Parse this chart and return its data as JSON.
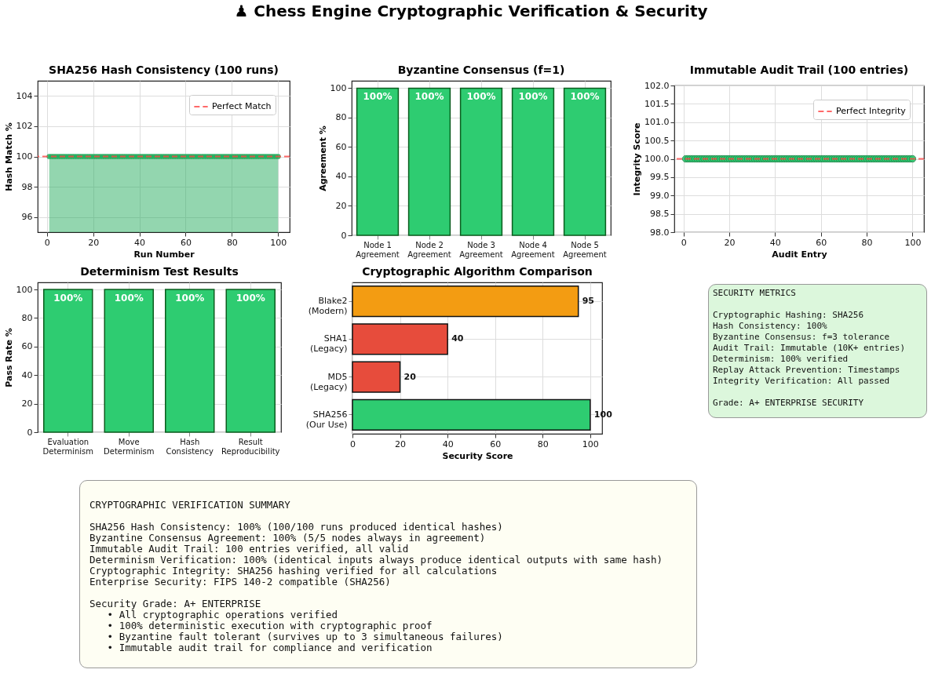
{
  "chart_data": [
    {
      "type": "other",
      "title": "♟ Chess Engine Cryptographic Verification & Security"
    },
    {
      "type": "area",
      "title": "SHA256 Hash Consistency (100 runs)",
      "xlabel": "Run Number",
      "ylabel": "Hash Match %",
      "color": "#27ae60",
      "marker": "circle",
      "grid": true,
      "legend": "top right",
      "x": [
        1,
        2,
        3,
        4,
        5,
        6,
        7,
        8,
        9,
        10,
        11,
        12,
        13,
        14,
        15,
        16,
        17,
        18,
        19,
        20,
        21,
        22,
        23,
        24,
        25,
        26,
        27,
        28,
        29,
        30,
        31,
        32,
        33,
        34,
        35,
        36,
        37,
        38,
        39,
        40,
        41,
        42,
        43,
        44,
        45,
        46,
        47,
        48,
        49,
        50,
        51,
        52,
        53,
        54,
        55,
        56,
        57,
        58,
        59,
        60,
        61,
        62,
        63,
        64,
        65,
        66,
        67,
        68,
        69,
        70,
        71,
        72,
        73,
        74,
        75,
        76,
        77,
        78,
        79,
        80,
        81,
        82,
        83,
        84,
        85,
        86,
        87,
        88,
        89,
        90,
        91,
        92,
        93,
        94,
        95,
        96,
        97,
        98,
        99,
        100
      ],
      "values": [
        100,
        100,
        100,
        100,
        100,
        100,
        100,
        100,
        100,
        100,
        100,
        100,
        100,
        100,
        100,
        100,
        100,
        100,
        100,
        100,
        100,
        100,
        100,
        100,
        100,
        100,
        100,
        100,
        100,
        100,
        100,
        100,
        100,
        100,
        100,
        100,
        100,
        100,
        100,
        100,
        100,
        100,
        100,
        100,
        100,
        100,
        100,
        100,
        100,
        100,
        100,
        100,
        100,
        100,
        100,
        100,
        100,
        100,
        100,
        100,
        100,
        100,
        100,
        100,
        100,
        100,
        100,
        100,
        100,
        100,
        100,
        100,
        100,
        100,
        100,
        100,
        100,
        100,
        100,
        100,
        100,
        100,
        100,
        100,
        100,
        100,
        100,
        100,
        100,
        100,
        100,
        100,
        100,
        100,
        100,
        100,
        100,
        100,
        100,
        100
      ],
      "xlim": [
        -4,
        105
      ],
      "xticks": [
        0,
        20,
        40,
        60,
        80,
        100
      ],
      "ylim": [
        95,
        105
      ],
      "yticks": [
        96,
        98,
        100,
        102,
        104
      ],
      "ref_lines": [
        {
          "axis": "y",
          "value": 100,
          "label": "Perfect Match",
          "color": "#ff4444",
          "line_style": "dashed"
        }
      ]
    },
    {
      "type": "bar",
      "title": "Byzantine Consensus (f=1)",
      "ylabel": "Agreement %",
      "color": "#2ecc71",
      "grid": true,
      "categories": [
        "Node 1\nAgreement",
        "Node 2\nAgreement",
        "Node 3\nAgreement",
        "Node 4\nAgreement",
        "Node 5\nAgreement"
      ],
      "values": [
        100,
        100,
        100,
        100,
        100
      ],
      "value_labels": [
        "100%",
        "100%",
        "100%",
        "100%",
        "100%"
      ],
      "ylim": [
        0,
        105
      ],
      "yticks": [
        0,
        20,
        40,
        60,
        80,
        100
      ]
    },
    {
      "type": "scatter",
      "title": "Immutable Audit Trail (100 entries)",
      "xlabel": "Audit Entry",
      "ylabel": "Integrity Score",
      "color": "#2ecc71",
      "marker": "circle",
      "grid": true,
      "legend": "top right",
      "x": [
        1,
        2,
        3,
        4,
        5,
        6,
        7,
        8,
        9,
        10,
        11,
        12,
        13,
        14,
        15,
        16,
        17,
        18,
        19,
        20,
        21,
        22,
        23,
        24,
        25,
        26,
        27,
        28,
        29,
        30,
        31,
        32,
        33,
        34,
        35,
        36,
        37,
        38,
        39,
        40,
        41,
        42,
        43,
        44,
        45,
        46,
        47,
        48,
        49,
        50,
        51,
        52,
        53,
        54,
        55,
        56,
        57,
        58,
        59,
        60,
        61,
        62,
        63,
        64,
        65,
        66,
        67,
        68,
        69,
        70,
        71,
        72,
        73,
        74,
        75,
        76,
        77,
        78,
        79,
        80,
        81,
        82,
        83,
        84,
        85,
        86,
        87,
        88,
        89,
        90,
        91,
        92,
        93,
        94,
        95,
        96,
        97,
        98,
        99,
        100
      ],
      "values": [
        100,
        100,
        100,
        100,
        100,
        100,
        100,
        100,
        100,
        100,
        100,
        100,
        100,
        100,
        100,
        100,
        100,
        100,
        100,
        100,
        100,
        100,
        100,
        100,
        100,
        100,
        100,
        100,
        100,
        100,
        100,
        100,
        100,
        100,
        100,
        100,
        100,
        100,
        100,
        100,
        100,
        100,
        100,
        100,
        100,
        100,
        100,
        100,
        100,
        100,
        100,
        100,
        100,
        100,
        100,
        100,
        100,
        100,
        100,
        100,
        100,
        100,
        100,
        100,
        100,
        100,
        100,
        100,
        100,
        100,
        100,
        100,
        100,
        100,
        100,
        100,
        100,
        100,
        100,
        100,
        100,
        100,
        100,
        100,
        100,
        100,
        100,
        100,
        100,
        100,
        100,
        100,
        100,
        100,
        100,
        100,
        100,
        100,
        100,
        100
      ],
      "xlim": [
        -4,
        105
      ],
      "xticks": [
        0,
        20,
        40,
        60,
        80,
        100
      ],
      "ylim": [
        98,
        102
      ],
      "yticks": [
        {
          "value": 98,
          "label": "98.0"
        },
        {
          "value": 98.5,
          "label": "98.5"
        },
        {
          "value": 99,
          "label": "99.0"
        },
        {
          "value": 99.5,
          "label": "99.5"
        },
        {
          "value": 100,
          "label": "100.0"
        },
        {
          "value": 100.5,
          "label": "100.5"
        },
        {
          "value": 101,
          "label": "101.0"
        },
        {
          "value": 101.5,
          "label": "101.5"
        },
        {
          "value": 102,
          "label": "102.0"
        }
      ],
      "ref_lines": [
        {
          "axis": "y",
          "value": 100,
          "label": "Perfect Integrity",
          "color": "#ff4444",
          "line_style": "dashed"
        }
      ]
    },
    {
      "type": "bar",
      "title": "Determinism Test Results",
      "ylabel": "Pass Rate %",
      "color": "#2ecc71",
      "grid": true,
      "categories": [
        "Evaluation\nDeterminism",
        "Move\nDeterminism",
        "Hash\nConsistency",
        "Result\nReproducibility"
      ],
      "values": [
        100,
        100,
        100,
        100
      ],
      "value_labels": [
        "100%",
        "100%",
        "100%",
        "100%"
      ],
      "ylim": [
        0,
        105
      ],
      "yticks": [
        0,
        20,
        40,
        60,
        80,
        100
      ]
    },
    {
      "type": "bar",
      "orientation": "horizontal",
      "title": "Cryptographic Algorithm Comparison",
      "xlabel": "Security Score",
      "grid": true,
      "data_labels": true,
      "categories": [
        "Blake2\n(Modern)",
        "SHA1\n(Legacy)",
        "MD5\n(Legacy)",
        "SHA256\n(Our Use)"
      ],
      "values": [
        95,
        40,
        20,
        100
      ],
      "colors": [
        "#f39c12",
        "#e74c3c",
        "#e74c3c",
        "#2ecc71"
      ],
      "xlim": [
        0,
        105
      ],
      "xticks": [
        0,
        20,
        40,
        60,
        80,
        100
      ]
    },
    {
      "type": "other",
      "title": "SECURITY METRICS",
      "annotations": [
        "Cryptographic Hashing: SHA256",
        "Hash Consistency: 100%",
        "Byzantine Consensus: f=3 tolerance",
        "Audit Trail: Immutable (10K+ entries)",
        "Determinism: 100% verified",
        "Replay Attack Prevention: Timestamps",
        "Integrity Verification: All passed",
        "Grade: A+ ENTERPRISE SECURITY"
      ]
    },
    {
      "type": "other",
      "title": "CRYPTOGRAPHIC VERIFICATION SUMMARY",
      "annotations": [
        "SHA256 Hash Consistency: 100% (100/100 runs produced identical hashes)",
        "Byzantine Consensus Agreement: 100% (5/5 nodes always in agreement)",
        "Immutable Audit Trail: 100 entries verified, all valid",
        "Determinism Verification: 100% (identical inputs always produce identical outputs with same hash)",
        "Cryptographic Integrity: SHA256 hashing verified for all calculations",
        "Enterprise Security: FIPS 140-2 compatible (SHA256)",
        "Security Grade: A+ ENTERPRISE",
        "   • All cryptographic operations verified",
        "   • 100% deterministic execution with cryptographic proof",
        "   • Byzantine fault tolerant (survives up to 3 simultaneous failures)",
        "   • Immutable audit trail for compliance and verification"
      ]
    }
  ]
}
